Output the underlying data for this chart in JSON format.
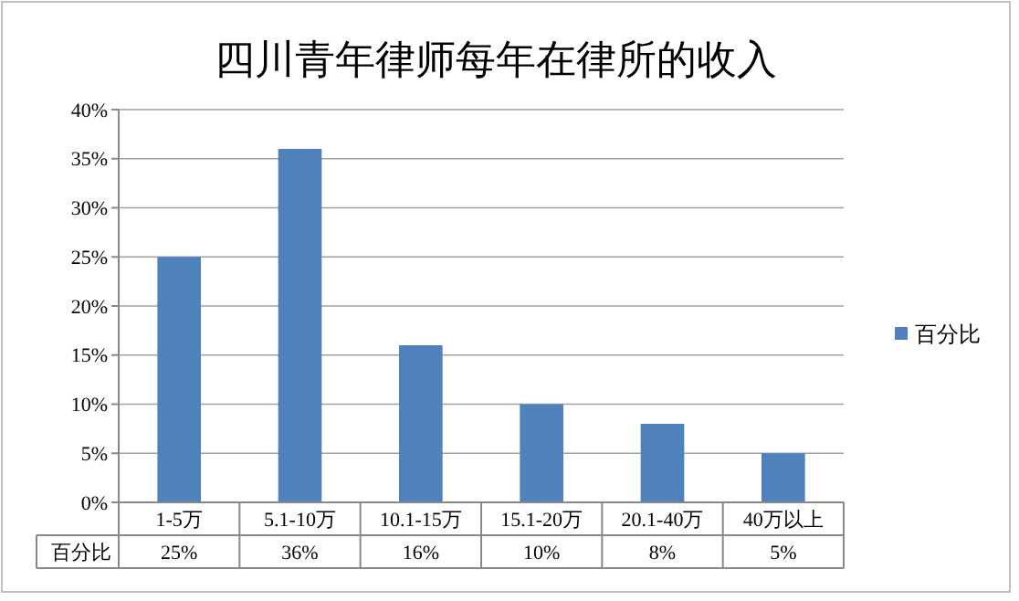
{
  "chart_data": {
    "type": "bar",
    "title": "四川青年律师每年在律所的收入",
    "categories": [
      "1-5万",
      "5.1-10万",
      "10.1-15万",
      "15.1-20万",
      "20.1-40万",
      "40万以上"
    ],
    "series": [
      {
        "name": "百分比",
        "color": "#4f81bd",
        "values": [
          25,
          36,
          16,
          10,
          8,
          5
        ],
        "value_labels": [
          "25%",
          "36%",
          "16%",
          "10%",
          "8%",
          "5%"
        ]
      }
    ],
    "ylim": [
      0,
      40
    ],
    "yticks": [
      {
        "value": 0,
        "label": "0%"
      },
      {
        "value": 5,
        "label": "5%"
      },
      {
        "value": 10,
        "label": "10%"
      },
      {
        "value": 15,
        "label": "15%"
      },
      {
        "value": 20,
        "label": "20%"
      },
      {
        "value": 25,
        "label": "25%"
      },
      {
        "value": 30,
        "label": "30%"
      },
      {
        "value": 35,
        "label": "35%"
      },
      {
        "value": 40,
        "label": "40%"
      }
    ],
    "grid": "y",
    "legend": "right"
  }
}
